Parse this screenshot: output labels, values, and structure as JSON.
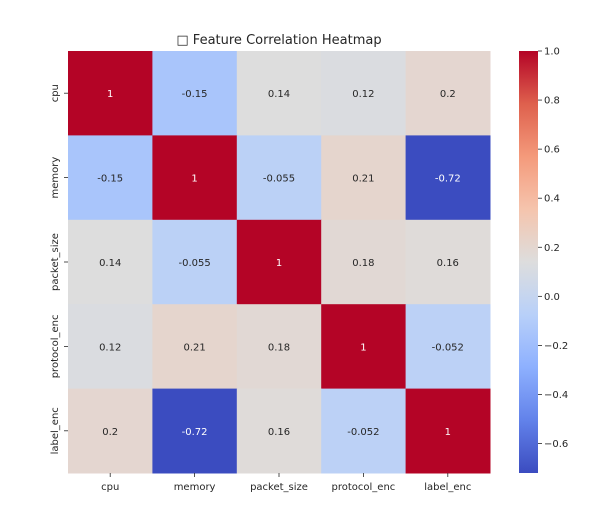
{
  "chart_data": {
    "type": "heatmap",
    "title": "□ Feature Correlation Heatmap",
    "rows": [
      "cpu",
      "memory",
      "packet_size",
      "protocol_enc",
      "label_enc"
    ],
    "columns": [
      "cpu",
      "memory",
      "packet_size",
      "protocol_enc",
      "label_enc"
    ],
    "values": [
      [
        1,
        -0.15,
        0.14,
        0.12,
        0.2
      ],
      [
        -0.15,
        1,
        -0.055,
        0.21,
        -0.72
      ],
      [
        0.14,
        -0.055,
        1,
        0.18,
        0.16
      ],
      [
        0.12,
        0.21,
        0.18,
        1,
        -0.052
      ],
      [
        0.2,
        -0.72,
        0.16,
        -0.052,
        1
      ]
    ],
    "annotations": [
      [
        "1",
        "-0.15",
        "0.14",
        "0.12",
        "0.2"
      ],
      [
        "-0.15",
        "1",
        "-0.055",
        "0.21",
        "-0.72"
      ],
      [
        "0.14",
        "-0.055",
        "1",
        "0.18",
        "0.16"
      ],
      [
        "0.12",
        "0.21",
        "0.18",
        "1",
        "-0.052"
      ],
      [
        "0.2",
        "-0.72",
        "0.16",
        "-0.052",
        "1"
      ]
    ],
    "colormap": "coolwarm",
    "vmin": -0.72,
    "vmax": 1.0,
    "colorbar": {
      "ticks": [
        1.0,
        0.8,
        0.6,
        0.4,
        0.2,
        0.0,
        -0.2,
        -0.4,
        -0.6
      ],
      "tick_labels": [
        "1.0",
        "0.8",
        "0.6",
        "0.4",
        "0.2",
        "0.0",
        "−0.2",
        "−0.4",
        "−0.6"
      ]
    }
  }
}
